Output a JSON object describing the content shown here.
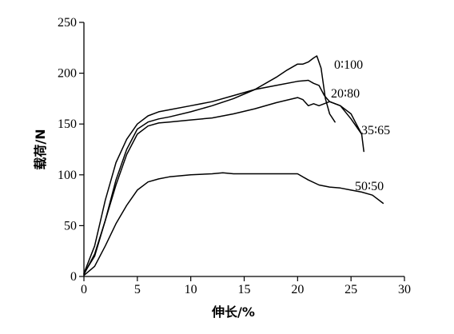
{
  "chart_data": {
    "type": "line",
    "title": "",
    "xlabel": "伸长/%",
    "ylabel": "载荷/N",
    "xlim": [
      0,
      30
    ],
    "ylim": [
      0,
      250
    ],
    "xticks": [
      0,
      5,
      10,
      15,
      20,
      25,
      30
    ],
    "yticks": [
      0,
      50,
      100,
      150,
      200,
      250
    ],
    "grid": false,
    "series": [
      {
        "name": "0∶100",
        "x": [
          0,
          1,
          2,
          3,
          4,
          5,
          6,
          7,
          8,
          10,
          12,
          14,
          16,
          18,
          19,
          20,
          20.5,
          21,
          21.5,
          21.8,
          22.2,
          22.6,
          23,
          23.5
        ],
        "y": [
          3,
          20,
          55,
          95,
          125,
          145,
          152,
          155,
          157,
          162,
          168,
          175,
          184,
          196,
          203,
          209,
          209,
          211,
          215,
          217,
          205,
          175,
          160,
          152
        ]
      },
      {
        "name": "20∶80",
        "x": [
          0,
          1,
          2,
          3,
          4,
          5,
          6,
          7,
          8,
          10,
          12,
          14,
          16,
          18,
          20,
          21,
          21.5,
          22,
          22.5,
          23,
          24,
          25,
          26
        ],
        "y": [
          3,
          30,
          75,
          112,
          135,
          150,
          158,
          162,
          164,
          168,
          172,
          178,
          184,
          188,
          192,
          193,
          190,
          188,
          178,
          172,
          168,
          155,
          140
        ]
      },
      {
        "name": "35∶65",
        "x": [
          0,
          1,
          2,
          3,
          4,
          5,
          6,
          7,
          8,
          10,
          12,
          14,
          16,
          18,
          20,
          20.5,
          21,
          21.5,
          22,
          23,
          24,
          25,
          25.5,
          26,
          26.2
        ],
        "y": [
          2,
          22,
          55,
          90,
          120,
          140,
          148,
          151,
          152,
          154,
          156,
          160,
          165,
          171,
          176,
          174,
          168,
          170,
          168,
          172,
          168,
          160,
          150,
          140,
          123
        ]
      },
      {
        "name": "50∶50",
        "x": [
          0,
          1,
          2,
          3,
          4,
          5,
          6,
          7,
          8,
          10,
          12,
          13,
          14,
          16,
          18,
          20,
          21,
          22,
          23,
          24,
          25,
          26,
          27,
          28
        ],
        "y": [
          1,
          10,
          30,
          52,
          70,
          85,
          93,
          96,
          98,
          100,
          101,
          102,
          101,
          101,
          101,
          101,
          95,
          90,
          88,
          87,
          85,
          83,
          80,
          72
        ]
      }
    ]
  }
}
